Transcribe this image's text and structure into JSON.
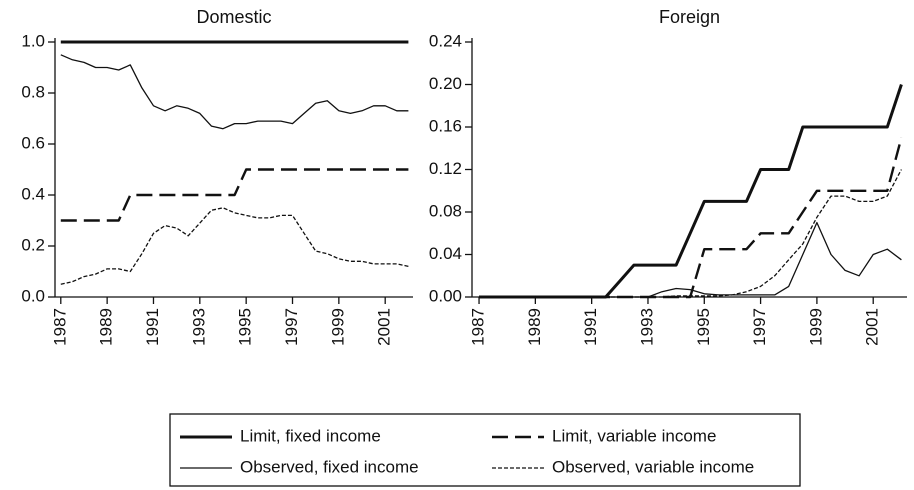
{
  "chart_data": [
    {
      "type": "line",
      "title": "Domestic",
      "x": [
        1987,
        1987.5,
        1988,
        1988.5,
        1989,
        1989.5,
        1990,
        1990.5,
        1991,
        1991.5,
        1992,
        1992.5,
        1993,
        1993.5,
        1994,
        1994.5,
        1995,
        1995.5,
        1996,
        1996.5,
        1997,
        1997.5,
        1998,
        1998.5,
        1999,
        1999.5,
        2000,
        2000.5,
        2001,
        2001.5,
        2002
      ],
      "xlim": [
        1986.75,
        2002.2
      ],
      "xticks": [
        1987,
        1989,
        1991,
        1993,
        1995,
        1997,
        1999,
        2001
      ],
      "ylim": [
        0,
        1
      ],
      "yticks": [
        {
          "value": 0,
          "label": "0.0"
        },
        0.2,
        0.4,
        0.6,
        0.8,
        {
          "value": 1,
          "label": "1.0"
        }
      ],
      "series": [
        {
          "name": "Limit, fixed income",
          "color": "#111111",
          "width": 3,
          "dash": "none",
          "values": [
            1,
            1,
            1,
            1,
            1,
            1,
            1,
            1,
            1,
            1,
            1,
            1,
            1,
            1,
            1,
            1,
            1,
            1,
            1,
            1,
            1,
            1,
            1,
            1,
            1,
            1,
            1,
            1,
            1,
            1,
            1
          ]
        },
        {
          "name": "Limit, variable income",
          "color": "#111111",
          "width": 2.4,
          "dash": "16 7",
          "values": [
            0.3,
            0.3,
            0.3,
            0.3,
            0.3,
            0.3,
            0.4,
            0.4,
            0.4,
            0.4,
            0.4,
            0.4,
            0.4,
            0.4,
            0.4,
            0.4,
            0.5,
            0.5,
            0.5,
            0.5,
            0.5,
            0.5,
            0.5,
            0.5,
            0.5,
            0.5,
            0.5,
            0.5,
            0.5,
            0.5,
            0.5
          ]
        },
        {
          "name": "Observed, fixed income",
          "color": "#111111",
          "width": 1.3,
          "dash": "none",
          "values": [
            0.95,
            0.93,
            0.92,
            0.9,
            0.9,
            0.89,
            0.91,
            0.82,
            0.75,
            0.73,
            0.75,
            0.74,
            0.72,
            0.67,
            0.66,
            0.68,
            0.68,
            0.69,
            0.69,
            0.69,
            0.68,
            0.72,
            0.76,
            0.77,
            0.73,
            0.72,
            0.73,
            0.75,
            0.75,
            0.73,
            0.73
          ]
        },
        {
          "name": "Observed, variable income",
          "color": "#111111",
          "width": 1.3,
          "dash": "4 2",
          "values": [
            0.05,
            0.06,
            0.08,
            0.09,
            0.11,
            0.11,
            0.1,
            0.17,
            0.25,
            0.28,
            0.27,
            0.24,
            0.29,
            0.34,
            0.35,
            0.33,
            0.32,
            0.31,
            0.31,
            0.32,
            0.32,
            0.25,
            0.18,
            0.17,
            0.15,
            0.14,
            0.14,
            0.13,
            0.13,
            0.13,
            0.12
          ]
        }
      ]
    },
    {
      "type": "line",
      "title": "Foreign",
      "x": [
        1987,
        1987.5,
        1988,
        1988.5,
        1989,
        1989.5,
        1990,
        1990.5,
        1991,
        1991.5,
        1992,
        1992.5,
        1993,
        1993.5,
        1994,
        1994.5,
        1995,
        1995.5,
        1996,
        1996.5,
        1997,
        1997.5,
        1998,
        1998.5,
        1999,
        1999.5,
        2000,
        2000.5,
        2001,
        2001.5,
        2002
      ],
      "xlim": [
        1986.75,
        2002.2
      ],
      "xticks": [
        1987,
        1989,
        1991,
        1993,
        1995,
        1997,
        1999,
        2001
      ],
      "ylim": [
        0,
        0.24
      ],
      "yticks": [
        {
          "value": 0,
          "label": "0.00"
        },
        0.04,
        0.08,
        0.12,
        0.16,
        {
          "value": 0.2,
          "label": "0.20"
        },
        0.24
      ],
      "series": [
        {
          "color": "#111111",
          "width": 3,
          "dash": "none",
          "values": [
            0,
            0,
            0,
            0,
            0,
            0,
            0,
            0,
            0,
            0,
            0.015,
            0.03,
            0.03,
            0.03,
            0.03,
            0.06,
            0.09,
            0.09,
            0.09,
            0.09,
            0.12,
            0.12,
            0.12,
            0.16,
            0.16,
            0.16,
            0.16,
            0.16,
            0.16,
            0.16,
            0.2
          ]
        },
        {
          "color": "#111111",
          "width": 2.4,
          "dash": "16 7",
          "values": [
            0,
            0,
            0,
            0,
            0,
            0,
            0,
            0,
            0,
            0,
            0,
            0,
            0,
            0,
            0,
            0,
            0.045,
            0.045,
            0.045,
            0.045,
            0.06,
            0.06,
            0.06,
            0.08,
            0.1,
            0.1,
            0.1,
            0.1,
            0.1,
            0.1,
            0.15
          ]
        },
        {
          "color": "#111111",
          "width": 1.3,
          "dash": "none",
          "values": [
            0,
            0,
            0,
            0,
            0,
            0,
            0,
            0,
            0,
            0,
            0,
            0,
            0,
            0.005,
            0.008,
            0.007,
            0.003,
            0.002,
            0.002,
            0.002,
            0.002,
            0.002,
            0.01,
            0.04,
            0.07,
            0.04,
            0.025,
            0.02,
            0.04,
            0.045,
            0.035
          ]
        },
        {
          "color": "#111111",
          "width": 1.3,
          "dash": "4 2",
          "values": [
            0,
            0,
            0,
            0,
            0,
            0,
            0,
            0,
            0,
            0,
            0,
            0,
            0,
            0,
            0.001,
            0.001,
            0.001,
            0.001,
            0.002,
            0.005,
            0.01,
            0.02,
            0.035,
            0.05,
            0.075,
            0.095,
            0.095,
            0.09,
            0.09,
            0.095,
            0.12
          ]
        }
      ]
    }
  ]
}
